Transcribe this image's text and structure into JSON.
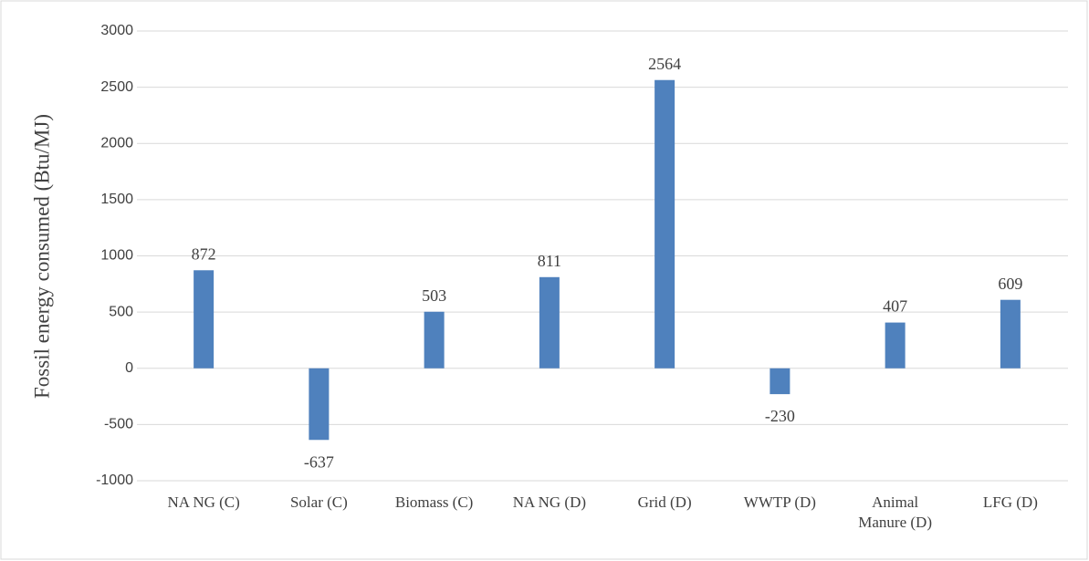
{
  "chart_data": {
    "type": "bar",
    "ylabel": "Fossil energy consumed (Btu/MJ)",
    "categories": [
      "NA NG (C)",
      "Solar (C)",
      "Biomass (C)",
      "NA NG (D)",
      "Grid (D)",
      "WWTP (D)",
      "Animal Manure (D)",
      "LFG (D)"
    ],
    "values": [
      872,
      -637,
      503,
      811,
      2564,
      -230,
      407,
      609
    ],
    "color": "#4f81bd",
    "ylim": [
      -1000,
      3000
    ],
    "yticks": [
      -1000,
      -500,
      0,
      500,
      1000,
      1500,
      2000,
      2500,
      3000
    ],
    "grid": true
  }
}
